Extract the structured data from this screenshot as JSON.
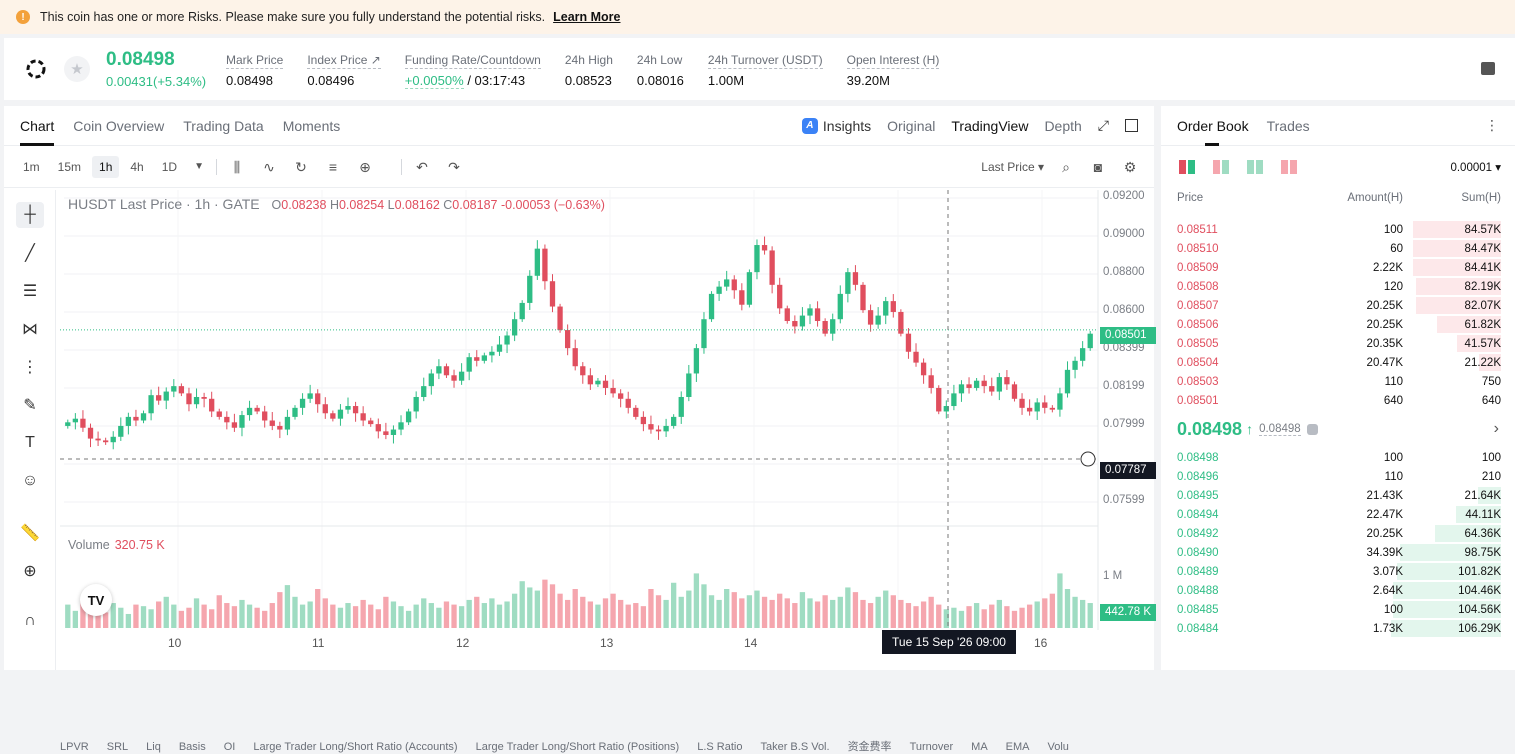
{
  "banner": {
    "text": "This coin has one or more Risks. Please make sure you fully understand the potential risks.",
    "link": "Learn More",
    "icon": "info-icon"
  },
  "ticker": {
    "last_price": "0.08498",
    "change": "0.00431(+5.34%)",
    "stats": [
      {
        "label": "Mark Price",
        "value": "0.08498"
      },
      {
        "label": "Index Price ↗",
        "value": "0.08496"
      },
      {
        "label": "Funding Rate/Countdown",
        "value_green": "+0.0050%",
        "value": "/ 03:17:43"
      },
      {
        "label": "24h High",
        "value": "0.08523"
      },
      {
        "label": "24h Low",
        "value": "0.08016"
      },
      {
        "label": "24h Turnover (USDT)",
        "value": "1.00M"
      },
      {
        "label": "Open Interest (H)",
        "value": "39.20M"
      }
    ]
  },
  "chart_tabs": {
    "chart": "Chart",
    "overview": "Coin Overview",
    "trading_data": "Trading Data",
    "moments": "Moments",
    "insights": "Insights",
    "original": "Original",
    "tradingview": "TradingView",
    "depth": "Depth"
  },
  "toolbar": {
    "intervals": [
      "1m",
      "15m",
      "1h",
      "4h",
      "1D"
    ],
    "active_interval": "1h",
    "price_type": "Last Price ▾"
  },
  "legend": {
    "title": "HUSDT Last Price · 1h · GATE",
    "o": "0.08238",
    "h": "0.08254",
    "l": "0.08162",
    "c": "0.08187",
    "chg": "-0.00053 (−0.63%)",
    "volume_label": "Volume",
    "volume_value": "320.75 K"
  },
  "chart_data": {
    "type": "candlestick",
    "title": "HUSDT Last Price · 1h · GATE",
    "ylim": [
      0.0745,
      0.0923
    ],
    "y_ticks": [
      "0.09200",
      "0.09000",
      "0.08800",
      "0.08600",
      "0.08399",
      "0.08199",
      "0.07999",
      "0.07599"
    ],
    "x_ticks": [
      "10",
      "11",
      "12",
      "13",
      "14",
      "16"
    ],
    "last_price_tag": "0.08501",
    "crosshair_price_tag": "0.07787",
    "crosshair_time": "Tue 15 Sep '26   09:00",
    "volume_axis_tick": "1 M",
    "volume_tag": "442.78 K",
    "close_series": [
      0.0799,
      0.0801,
      0.0796,
      0.079,
      0.0789,
      0.0788,
      0.0791,
      0.0797,
      0.0802,
      0.08,
      0.0804,
      0.0814,
      0.0811,
      0.0816,
      0.0819,
      0.0815,
      0.0809,
      0.0813,
      0.0812,
      0.0805,
      0.0802,
      0.0799,
      0.0796,
      0.0803,
      0.0807,
      0.0805,
      0.08,
      0.0797,
      0.0795,
      0.0802,
      0.0807,
      0.0812,
      0.0815,
      0.0809,
      0.0804,
      0.0801,
      0.0806,
      0.0808,
      0.0804,
      0.08,
      0.0798,
      0.0794,
      0.0792,
      0.0795,
      0.0799,
      0.0805,
      0.0813,
      0.0819,
      0.0826,
      0.083,
      0.0825,
      0.0822,
      0.0827,
      0.0835,
      0.0833,
      0.0836,
      0.0838,
      0.0842,
      0.0847,
      0.0856,
      0.0865,
      0.088,
      0.0895,
      0.0877,
      0.0863,
      0.085,
      0.084,
      0.083,
      0.0825,
      0.082,
      0.0822,
      0.0818,
      0.0815,
      0.0812,
      0.0807,
      0.0802,
      0.0798,
      0.0795,
      0.0794,
      0.0797,
      0.0802,
      0.0813,
      0.0826,
      0.084,
      0.0856,
      0.087,
      0.0874,
      0.0878,
      0.0872,
      0.0864,
      0.0882,
      0.0897,
      0.0894,
      0.0875,
      0.0862,
      0.0855,
      0.0852,
      0.0858,
      0.0862,
      0.0855,
      0.0848,
      0.0856,
      0.087,
      0.0882,
      0.0875,
      0.0861,
      0.0853,
      0.0858,
      0.0866,
      0.086,
      0.0848,
      0.0838,
      0.0832,
      0.0825,
      0.0818,
      0.0805,
      0.0808,
      0.0815,
      0.082,
      0.0818,
      0.0822,
      0.0819,
      0.0816,
      0.0824,
      0.082,
      0.0812,
      0.0807,
      0.0805,
      0.081,
      0.0807,
      0.0806,
      0.0815,
      0.0828,
      0.0833,
      0.084,
      0.0848
    ],
    "volume_series": [
      0.3,
      0.22,
      0.35,
      0.28,
      0.25,
      0.2,
      0.32,
      0.26,
      0.18,
      0.3,
      0.28,
      0.24,
      0.34,
      0.4,
      0.3,
      0.22,
      0.26,
      0.38,
      0.3,
      0.24,
      0.42,
      0.32,
      0.28,
      0.36,
      0.3,
      0.26,
      0.22,
      0.32,
      0.46,
      0.55,
      0.4,
      0.3,
      0.34,
      0.5,
      0.38,
      0.3,
      0.26,
      0.32,
      0.28,
      0.36,
      0.3,
      0.24,
      0.4,
      0.34,
      0.28,
      0.22,
      0.3,
      0.38,
      0.32,
      0.26,
      0.34,
      0.3,
      0.28,
      0.36,
      0.4,
      0.32,
      0.38,
      0.3,
      0.34,
      0.44,
      0.6,
      0.52,
      0.48,
      0.62,
      0.56,
      0.44,
      0.36,
      0.5,
      0.4,
      0.34,
      0.3,
      0.38,
      0.44,
      0.36,
      0.3,
      0.32,
      0.28,
      0.5,
      0.42,
      0.36,
      0.58,
      0.4,
      0.48,
      0.7,
      0.56,
      0.42,
      0.36,
      0.5,
      0.46,
      0.38,
      0.42,
      0.48,
      0.4,
      0.36,
      0.44,
      0.38,
      0.32,
      0.46,
      0.38,
      0.34,
      0.42,
      0.36,
      0.4,
      0.52,
      0.46,
      0.36,
      0.32,
      0.4,
      0.48,
      0.42,
      0.36,
      0.32,
      0.28,
      0.34,
      0.4,
      0.3,
      0.24,
      0.26,
      0.22,
      0.28,
      0.32,
      0.24,
      0.3,
      0.36,
      0.28,
      0.22,
      0.26,
      0.3,
      0.34,
      0.38,
      0.44,
      0.7,
      0.5,
      0.4,
      0.36,
      0.32
    ]
  },
  "bottom_bar": [
    "LPVR",
    "SRL",
    "Liq",
    "Basis",
    "OI",
    "Large Trader Long/Short Ratio (Accounts)",
    "Large Trader Long/Short Ratio (Positions)",
    "L.S Ratio",
    "Taker B.S Vol.",
    "资金费率",
    "Turnover",
    "MA",
    "EMA",
    "Volu"
  ],
  "orderbook": {
    "tab_book": "Order Book",
    "tab_trades": "Trades",
    "precision": "0.00001 ▾",
    "cols": [
      "Price",
      "Amount(H)",
      "Sum(H)"
    ],
    "asks": [
      {
        "price": "0.08511",
        "amount": "100",
        "sum": "84.57K",
        "depth": 0.8
      },
      {
        "price": "0.08510",
        "amount": "60",
        "sum": "84.47K",
        "depth": 0.8
      },
      {
        "price": "0.08509",
        "amount": "2.22K",
        "sum": "84.41K",
        "depth": 0.8
      },
      {
        "price": "0.08508",
        "amount": "120",
        "sum": "82.19K",
        "depth": 0.77
      },
      {
        "price": "0.08507",
        "amount": "20.25K",
        "sum": "82.07K",
        "depth": 0.77
      },
      {
        "price": "0.08506",
        "amount": "20.25K",
        "sum": "61.82K",
        "depth": 0.58
      },
      {
        "price": "0.08505",
        "amount": "20.35K",
        "sum": "41.57K",
        "depth": 0.4
      },
      {
        "price": "0.08504",
        "amount": "20.47K",
        "sum": "21.22K",
        "depth": 0.2
      },
      {
        "price": "0.08503",
        "amount": "110",
        "sum": "750",
        "depth": 0.0
      },
      {
        "price": "0.08501",
        "amount": "640",
        "sum": "640",
        "depth": 0.0
      }
    ],
    "mid_price": "0.08498",
    "mid_mark": "0.08498",
    "bids": [
      {
        "price": "0.08498",
        "amount": "100",
        "sum": "100",
        "depth": 0.0
      },
      {
        "price": "0.08496",
        "amount": "110",
        "sum": "210",
        "depth": 0.0
      },
      {
        "price": "0.08495",
        "amount": "21.43K",
        "sum": "21.64K",
        "depth": 0.21
      },
      {
        "price": "0.08494",
        "amount": "22.47K",
        "sum": "44.11K",
        "depth": 0.41
      },
      {
        "price": "0.08492",
        "amount": "20.25K",
        "sum": "64.36K",
        "depth": 0.6
      },
      {
        "price": "0.08490",
        "amount": "34.39K",
        "sum": "98.75K",
        "depth": 0.92
      },
      {
        "price": "0.08489",
        "amount": "3.07K",
        "sum": "101.82K",
        "depth": 0.95
      },
      {
        "price": "0.08488",
        "amount": "2.64K",
        "sum": "104.46K",
        "depth": 0.98
      },
      {
        "price": "0.08485",
        "amount": "100",
        "sum": "104.56K",
        "depth": 0.98
      },
      {
        "price": "0.08484",
        "amount": "1.73K",
        "sum": "106.29K",
        "depth": 1.0
      }
    ]
  },
  "colors": {
    "up": "#2ebd85",
    "down": "#e04e5e",
    "up_vol": "#9fdcc2",
    "down_vol": "#f5a6ae",
    "ask_depth": "#fde8ea",
    "bid_depth": "#e3f6ed"
  }
}
